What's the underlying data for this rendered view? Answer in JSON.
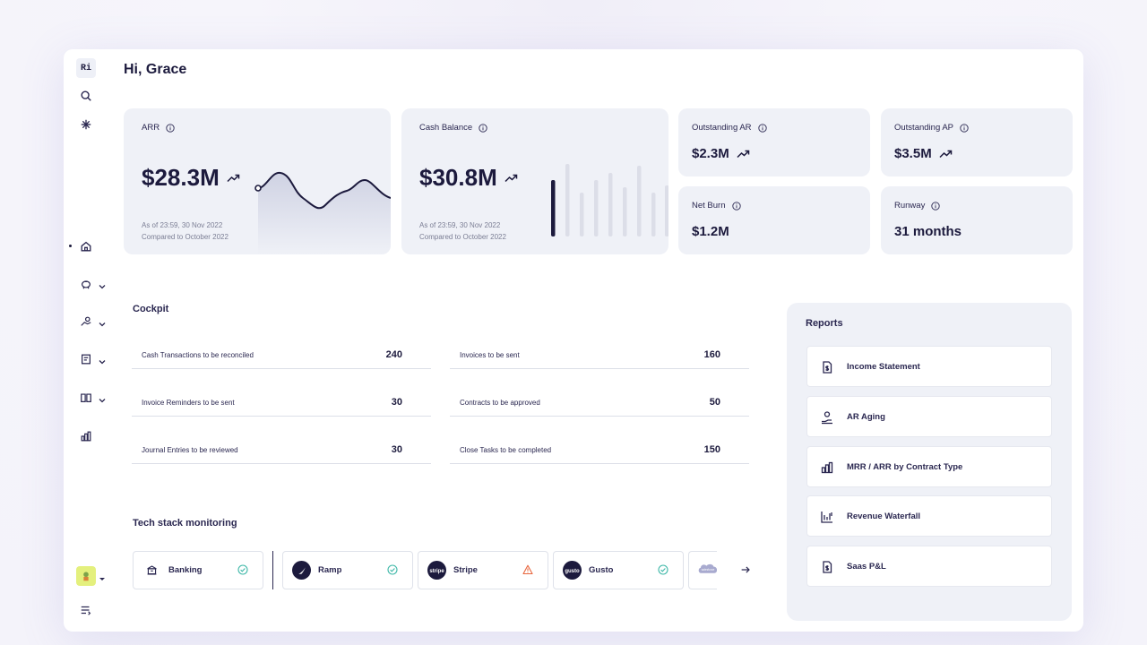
{
  "sidebar": {
    "logo_text": "Ri",
    "icons": [
      "search-icon",
      "asterisk-icon",
      "home-icon",
      "piggy-bank-icon",
      "hand-coins-icon",
      "receipt-icon",
      "book-icon",
      "bar-chart-icon",
      "menu-list-icon"
    ]
  },
  "greeting": "Hi, Grace",
  "kpis": {
    "arr": {
      "label": "ARR",
      "value": "$28.3M",
      "as_of": "As of 23:59, 30 Nov 2022",
      "compared": "Compared to October 2022"
    },
    "cash": {
      "label": "Cash Balance",
      "value": "$30.8M",
      "as_of": "As of 23:59, 30 Nov 2022",
      "compared": "Compared to October 2022"
    },
    "ar": {
      "label": "Outstanding AR",
      "value": "$2.3M"
    },
    "ap": {
      "label": "Outstanding AP",
      "value": "$3.5M"
    },
    "burn": {
      "label": "Net Burn",
      "value": "$1.2M"
    },
    "runway": {
      "label": "Runway",
      "value": "31 months"
    }
  },
  "cockpit": {
    "title": "Cockpit",
    "items": [
      {
        "label": "Cash Transactions to be reconciled",
        "value": "240"
      },
      {
        "label": "Invoices to be sent",
        "value": "160"
      },
      {
        "label": "Invoice Reminders to be sent",
        "value": "30"
      },
      {
        "label": "Contracts to be approved",
        "value": "50"
      },
      {
        "label": "Journal Entries to be reviewed",
        "value": "30"
      },
      {
        "label": "Close Tasks to be completed",
        "value": "150"
      }
    ]
  },
  "tech": {
    "title": "Tech stack monitoring",
    "items": [
      {
        "name": "Banking",
        "status": "ok"
      },
      {
        "name": "Ramp",
        "status": "ok"
      },
      {
        "name": "Stripe",
        "icon_text": "stripe",
        "status": "warning"
      },
      {
        "name": "Gusto",
        "icon_text": "gusto",
        "status": "ok"
      }
    ],
    "partial_logo_text": "salesforce"
  },
  "reports": {
    "title": "Reports",
    "items": [
      {
        "label": "Income Statement"
      },
      {
        "label": "AR Aging"
      },
      {
        "label": "MRR / ARR by Contract Type"
      },
      {
        "label": "Revenue Waterfall"
      },
      {
        "label": "Saas P&L"
      }
    ]
  },
  "colors": {
    "accent": "#1c1a3d",
    "card": "#eff1f7",
    "ok": "#3fb8a8",
    "warning": "#e8663d",
    "avatar": "#e4f07d"
  }
}
